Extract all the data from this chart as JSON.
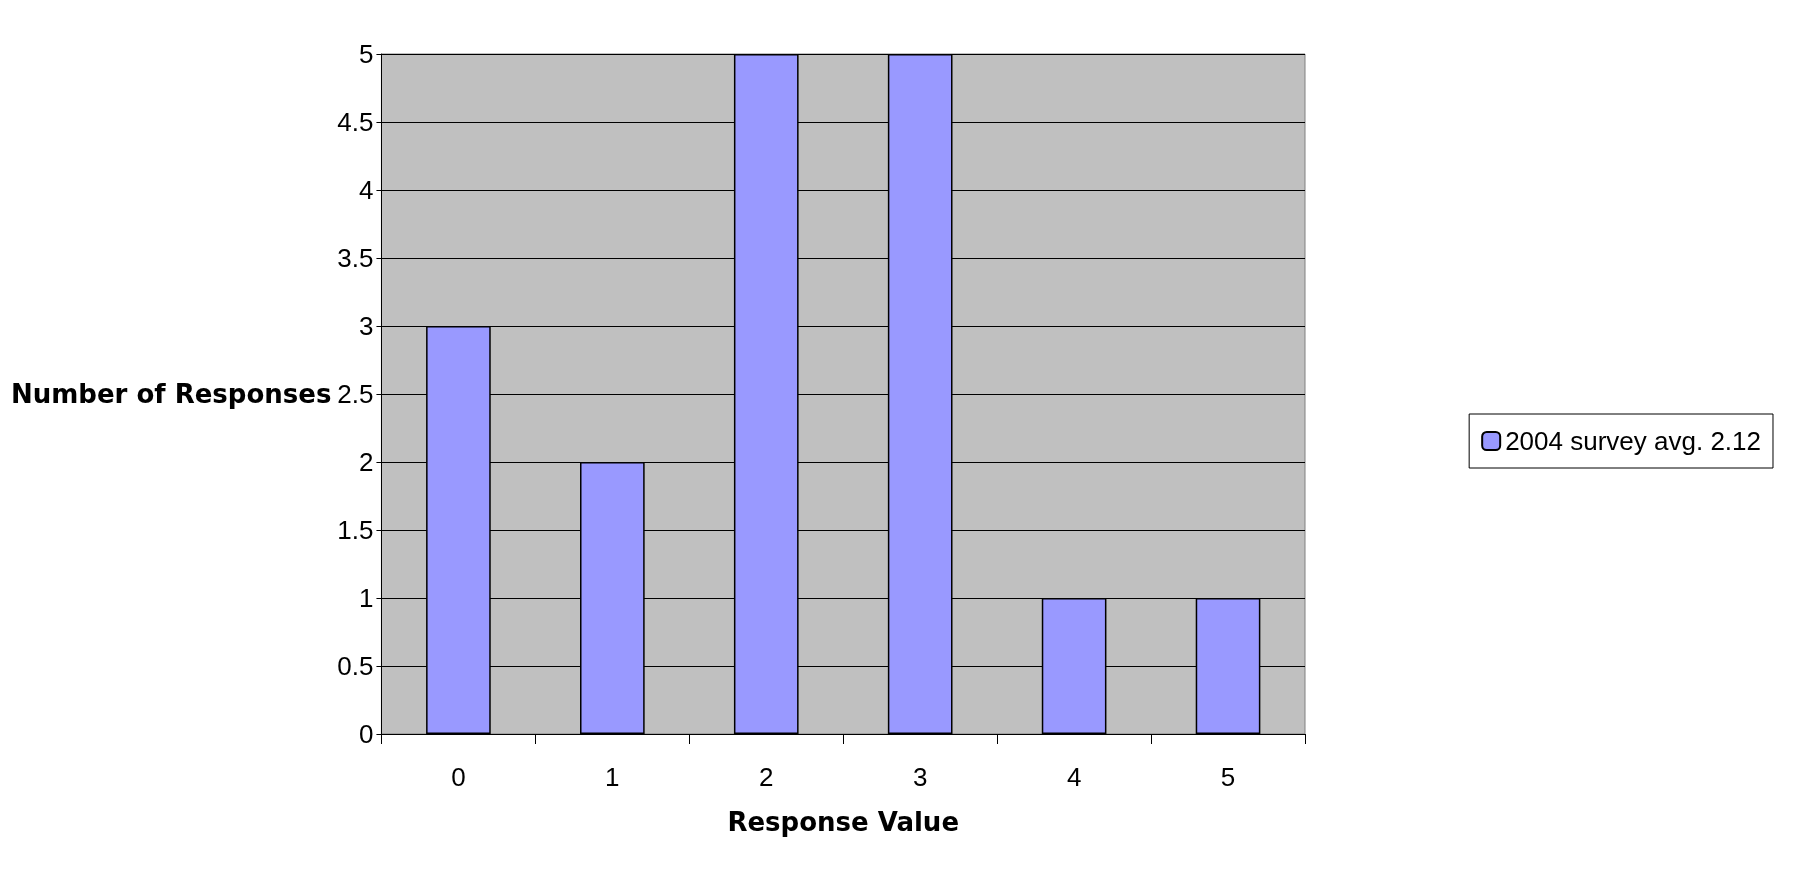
{
  "chart_data": {
    "type": "bar",
    "categories": [
      "0",
      "1",
      "2",
      "3",
      "4",
      "5"
    ],
    "series": [
      {
        "name": "2004 survey avg. 2.12",
        "color": "#9999ff",
        "values": [
          3,
          2,
          5,
          5,
          1,
          1
        ]
      }
    ],
    "xlabel": "Response Value",
    "ylabel": "Number of Responses",
    "ylim": [
      0,
      5
    ],
    "yticks": [
      0,
      0.5,
      1,
      1.5,
      2,
      2.5,
      3,
      3.5,
      4,
      4.5,
      5
    ],
    "grid": "y",
    "legend": "right"
  }
}
